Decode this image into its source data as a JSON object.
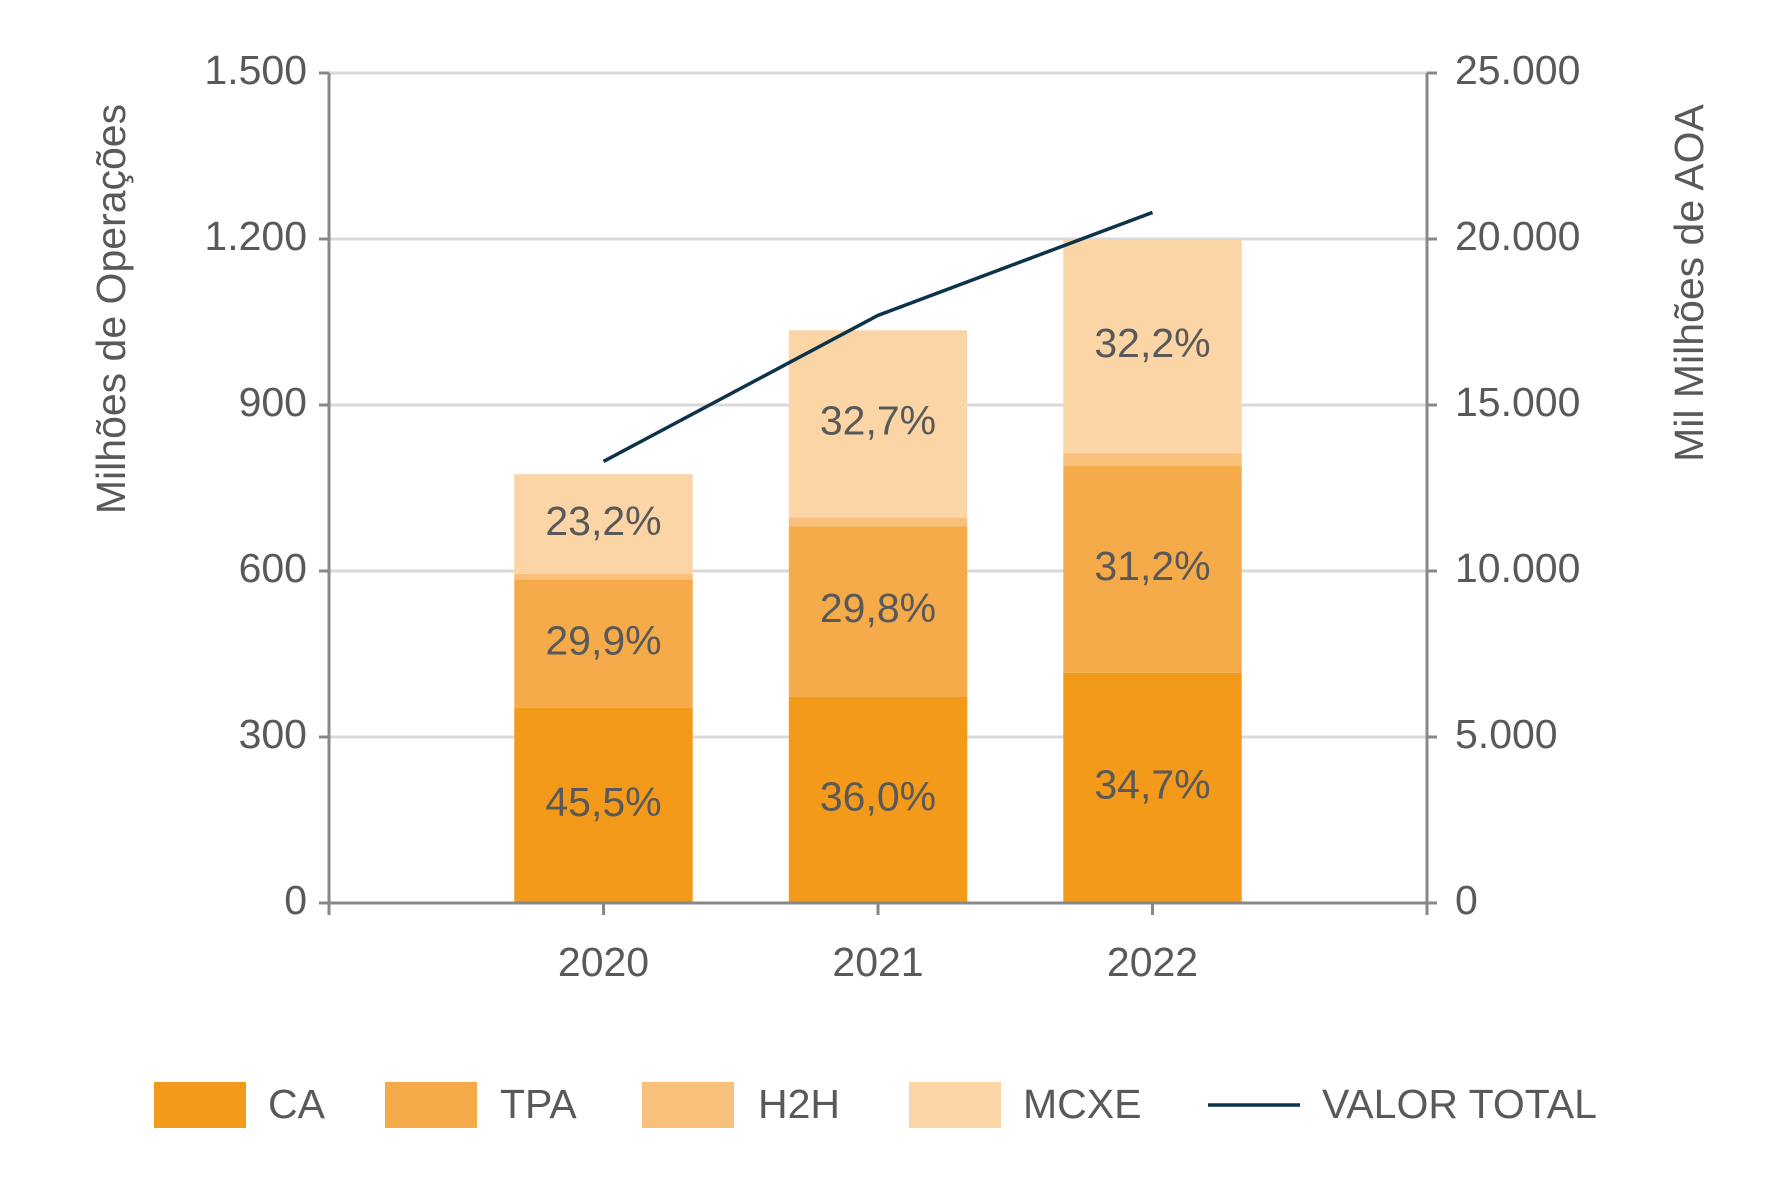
{
  "chart_data": {
    "type": "bar",
    "stacked": true,
    "y_label": "Milhões de Operações",
    "y2_label": "Mil Milhões de AOA",
    "categories": [
      "2020",
      "2021",
      "2022"
    ],
    "series": [
      {
        "name": "CA",
        "color": "#f39a1b",
        "values": [
          353,
          373,
          416
        ],
        "share_labels": [
          "45,5%",
          "36,0%",
          "34,7%"
        ]
      },
      {
        "name": "TPA",
        "color": "#f5ab4a",
        "values": [
          232,
          308,
          374
        ],
        "share_labels": [
          "29,9%",
          "29,8%",
          "31,2%"
        ]
      },
      {
        "name": "H2H",
        "color": "#f8c07b",
        "values": [
          10,
          16,
          23
        ]
      },
      {
        "name": "MCXE",
        "color": "#fbd5a5",
        "values": [
          180,
          338,
          386
        ],
        "share_labels": [
          "23,2%",
          "32,7%",
          "32,2%"
        ]
      },
      {
        "name": "VALOR TOTAL",
        "type": "line",
        "axis": "y2",
        "color": "#0d3349",
        "values": [
          13300,
          17700,
          20800
        ]
      }
    ],
    "ylim": [
      0,
      1500
    ],
    "yticks": [
      0,
      300,
      600,
      900,
      {
        "value": 1200,
        "label": "1.200"
      },
      {
        "value": 1500,
        "label": "1.500"
      }
    ],
    "y2lim": [
      0,
      25000
    ],
    "y2ticks": [
      0,
      {
        "value": 5000,
        "label": "5.000"
      },
      {
        "value": 10000,
        "label": "10.000"
      },
      {
        "value": 15000,
        "label": "15.000"
      },
      {
        "value": 20000,
        "label": "20.000"
      },
      {
        "value": 25000,
        "label": "25.000"
      }
    ],
    "grid": true,
    "legend": "bottom"
  }
}
